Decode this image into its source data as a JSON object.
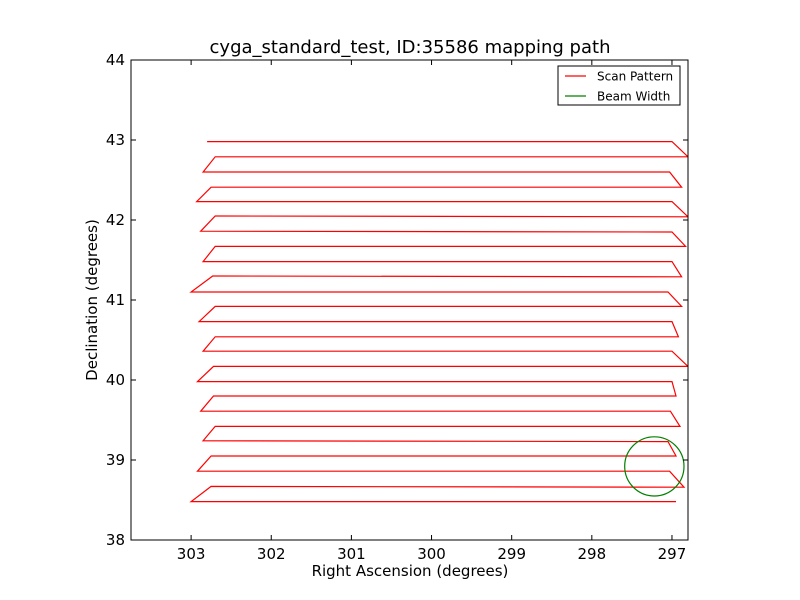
{
  "chart_data": {
    "type": "line",
    "title": "cyga_standard_test, ID:35586 mapping path",
    "xlabel": "Right Ascension (degrees)",
    "ylabel": "Declination (degrees)",
    "xlim": [
      303.75,
      296.8
    ],
    "ylim": [
      38,
      44
    ],
    "x_reversed": true,
    "xticks": [
      303,
      302,
      301,
      300,
      299,
      298,
      297
    ],
    "yticks": [
      38,
      39,
      40,
      41,
      42,
      43,
      44
    ],
    "grid": false,
    "legend_position": "top-right",
    "colors": {
      "scan": "#ff0000",
      "beam": "#008000"
    },
    "series": [
      {
        "name": "Scan Pattern",
        "color": "#ff0000",
        "points": [
          [
            296.95,
            38.48
          ],
          [
            303.0,
            38.48
          ],
          [
            302.75,
            38.67
          ],
          [
            296.85,
            38.66
          ],
          [
            297.03,
            38.86
          ],
          [
            302.92,
            38.86
          ],
          [
            302.75,
            39.05
          ],
          [
            296.95,
            39.05
          ],
          [
            297.05,
            39.23
          ],
          [
            302.85,
            39.24
          ],
          [
            302.7,
            39.42
          ],
          [
            296.9,
            39.42
          ],
          [
            297.02,
            39.61
          ],
          [
            302.88,
            39.61
          ],
          [
            302.72,
            39.8
          ],
          [
            296.95,
            39.8
          ],
          [
            297.0,
            39.98
          ],
          [
            302.92,
            39.98
          ],
          [
            302.72,
            40.17
          ],
          [
            296.8,
            40.17
          ],
          [
            297.0,
            40.36
          ],
          [
            302.85,
            40.36
          ],
          [
            302.7,
            40.54
          ],
          [
            296.92,
            40.54
          ],
          [
            297.0,
            40.73
          ],
          [
            302.9,
            40.73
          ],
          [
            302.7,
            40.92
          ],
          [
            296.88,
            40.92
          ],
          [
            297.05,
            41.1
          ],
          [
            303.0,
            41.1
          ],
          [
            302.73,
            41.3
          ],
          [
            296.88,
            41.29
          ],
          [
            297.0,
            41.48
          ],
          [
            302.85,
            41.48
          ],
          [
            302.7,
            41.67
          ],
          [
            296.83,
            41.67
          ],
          [
            297.0,
            41.85
          ],
          [
            302.88,
            41.86
          ],
          [
            302.7,
            42.05
          ],
          [
            296.8,
            42.04
          ],
          [
            297.0,
            42.23
          ],
          [
            302.93,
            42.23
          ],
          [
            302.75,
            42.41
          ],
          [
            296.88,
            42.41
          ],
          [
            297.03,
            42.6
          ],
          [
            302.85,
            42.6
          ],
          [
            302.7,
            42.79
          ],
          [
            296.8,
            42.79
          ],
          [
            297.0,
            42.98
          ],
          [
            302.8,
            42.98
          ]
        ]
      },
      {
        "name": "Beam Width",
        "color": "#008000",
        "shape": "circle",
        "center": [
          297.22,
          38.92
        ],
        "radius_deg": 0.37
      }
    ]
  }
}
